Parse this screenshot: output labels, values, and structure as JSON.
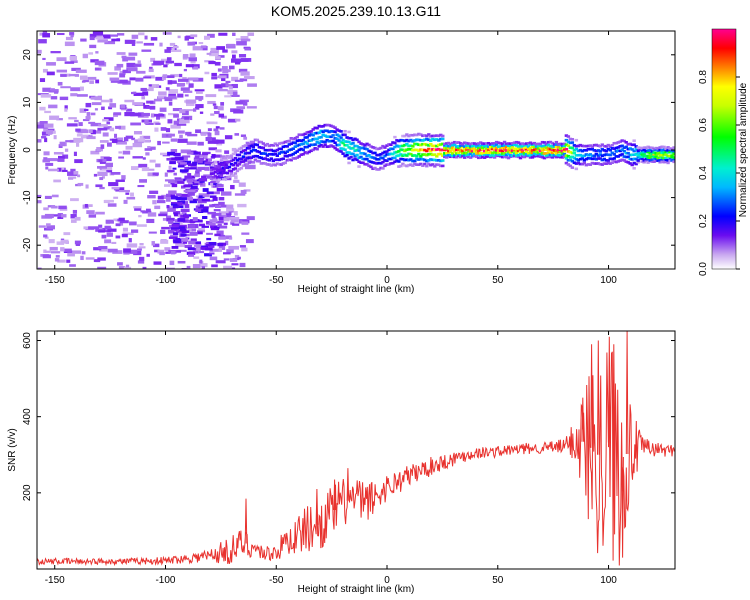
{
  "title": "KOM5.2025.239.10.13.G11",
  "colors": {
    "trace": "#e8322e",
    "axis": "#000000",
    "low": "#d8b8f0"
  },
  "chart_data": [
    {
      "type": "heatmap",
      "xlabel": "Height of straight line (km)",
      "ylabel": "Frequency (Hz)",
      "xlim": [
        -158,
        130
      ],
      "ylim": [
        -25,
        25
      ],
      "xticks": [
        -150,
        -100,
        -50,
        0,
        50,
        100
      ],
      "yticks": [
        -20,
        -10,
        0,
        10,
        20
      ],
      "ridge": {
        "x": [
          -80,
          -75,
          -70,
          -65,
          -60,
          -55,
          -50,
          -45,
          -40,
          -35,
          -30,
          -25,
          -20,
          -15,
          -10,
          -5,
          0,
          5,
          10,
          20,
          40,
          60,
          80,
          85,
          90,
          95,
          100,
          105,
          110,
          120,
          130
        ],
        "freq": [
          -5,
          -4,
          -3,
          -1,
          0,
          -1,
          -1,
          0,
          1,
          2,
          3,
          3,
          1,
          0,
          -1,
          -2,
          -1,
          0,
          0,
          0,
          0,
          0,
          0,
          -1,
          -1,
          -1,
          -1,
          0,
          -1,
          -1,
          -1
        ],
        "amplitude": [
          0.15,
          0.18,
          0.2,
          0.22,
          0.25,
          0.25,
          0.25,
          0.28,
          0.3,
          0.35,
          0.4,
          0.3,
          0.5,
          0.45,
          0.35,
          0.25,
          0.3,
          0.55,
          0.7,
          0.9,
          0.95,
          0.98,
          0.95,
          0.4,
          0.3,
          0.3,
          0.28,
          0.3,
          0.4,
          0.75,
          0.6
        ]
      },
      "colorbar": {
        "label": "Normalized spectral amplitude",
        "range": [
          0,
          1
        ],
        "ticks": [
          "0.0",
          "0.2",
          "0.4",
          "0.6",
          "0.8"
        ]
      }
    },
    {
      "type": "line",
      "xlabel": "Height of straight line (km)",
      "ylabel": "SNR (v/v)",
      "xlim": [
        -158,
        130
      ],
      "ylim": [
        0,
        625
      ],
      "xticks": [
        -150,
        -100,
        -50,
        0,
        50,
        100
      ],
      "yticks": [
        200,
        400,
        600
      ],
      "series": [
        {
          "name": "SNR",
          "x": [
            -158,
            -140,
            -120,
            -100,
            -90,
            -80,
            -70,
            -65,
            -60,
            -55,
            -50,
            -45,
            -40,
            -35,
            -30,
            -25,
            -20,
            -15,
            -10,
            -5,
            0,
            10,
            20,
            30,
            40,
            50,
            60,
            70,
            80,
            85,
            90,
            95,
            100,
            105,
            110,
            115,
            120,
            130
          ],
          "y": [
            20,
            20,
            20,
            22,
            28,
            35,
            50,
            70,
            55,
            40,
            45,
            75,
            90,
            110,
            120,
            150,
            175,
            185,
            175,
            190,
            215,
            245,
            270,
            290,
            305,
            308,
            315,
            318,
            322,
            340,
            330,
            300,
            320,
            290,
            310,
            320,
            315,
            310
          ]
        }
      ],
      "envelope": {
        "x": [
          -158,
          -120,
          -100,
          -90,
          -80,
          -70,
          -65,
          -60,
          -55,
          -50,
          -45,
          -40,
          -35,
          -30,
          -25,
          -20,
          -15,
          -10,
          -5,
          0,
          10,
          20,
          30,
          40,
          50,
          60,
          70,
          80,
          85,
          90,
          95,
          100,
          105,
          110,
          115,
          120,
          130
        ],
        "spread": [
          8,
          8,
          10,
          12,
          20,
          40,
          40,
          25,
          20,
          25,
          40,
          55,
          65,
          70,
          70,
          65,
          60,
          55,
          45,
          35,
          30,
          25,
          20,
          15,
          15,
          15,
          15,
          20,
          60,
          200,
          260,
          300,
          300,
          120,
          30,
          20,
          15
        ]
      },
      "spikes": [
        {
          "x": -64,
          "y": 185
        },
        {
          "x": -32,
          "y": 210
        },
        {
          "x": -24,
          "y": 235
        },
        {
          "x": -18,
          "y": 265
        },
        {
          "x": 88,
          "y": 450
        },
        {
          "x": 92,
          "y": 590
        },
        {
          "x": 95,
          "y": 600
        },
        {
          "x": 100,
          "y": 610
        },
        {
          "x": 102,
          "y": 590
        },
        {
          "x": 108,
          "y": 625
        },
        {
          "x": 106,
          "y": 30
        }
      ]
    }
  ]
}
